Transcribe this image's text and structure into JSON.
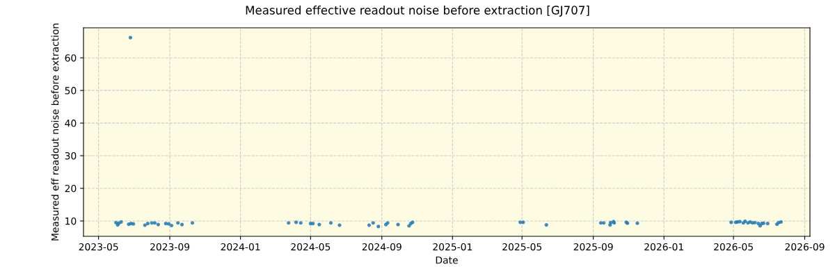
{
  "chart_data": {
    "type": "scatter",
    "title": "Measured effective readout noise before extraction [GJ707]",
    "xlabel": "Date",
    "ylabel": "Measured eff readout noise before extraction",
    "x": [
      "2023-05-31",
      "2023-06-03",
      "2023-06-05",
      "2023-06-09",
      "2023-06-22",
      "2023-06-25",
      "2023-06-26",
      "2023-06-30",
      "2023-07-20",
      "2023-07-25",
      "2023-08-01",
      "2023-08-06",
      "2023-08-12",
      "2023-08-25",
      "2023-08-30",
      "2023-09-04",
      "2023-09-15",
      "2023-09-22",
      "2023-10-10",
      "2024-03-24",
      "2024-04-06",
      "2024-04-14",
      "2024-05-01",
      "2024-05-05",
      "2024-05-16",
      "2024-06-05",
      "2024-06-20",
      "2024-08-10",
      "2024-08-17",
      "2024-08-26",
      "2024-09-08",
      "2024-09-11",
      "2024-09-29",
      "2024-10-18",
      "2024-10-21",
      "2024-10-24",
      "2025-04-28",
      "2025-05-03",
      "2025-06-12",
      "2025-09-14",
      "2025-09-19",
      "2025-09-30",
      "2025-10-01",
      "2025-10-06",
      "2025-10-07",
      "2025-10-28",
      "2025-10-30",
      "2025-11-16",
      "2026-04-27",
      "2026-05-05",
      "2026-05-08",
      "2026-05-12",
      "2026-05-18",
      "2026-05-21",
      "2026-05-26",
      "2026-05-30",
      "2026-06-03",
      "2026-06-07",
      "2026-06-13",
      "2026-06-16",
      "2026-06-19",
      "2026-06-22",
      "2026-06-29",
      "2026-07-15",
      "2026-07-18",
      "2026-07-22"
    ],
    "series": [
      {
        "color": "#1f77b4",
        "values": [
          9.5,
          8.8,
          9.3,
          9.7,
          9.0,
          66.2,
          9.2,
          9.1,
          8.7,
          9.2,
          9.4,
          9.4,
          8.9,
          9.2,
          9.1,
          8.6,
          9.4,
          8.9,
          9.4,
          9.4,
          9.6,
          9.4,
          9.2,
          9.2,
          8.9,
          9.4,
          8.7,
          8.7,
          9.4,
          8.3,
          8.9,
          9.4,
          8.9,
          8.5,
          9.2,
          9.6,
          9.6,
          9.6,
          8.8,
          9.4,
          9.4,
          8.8,
          9.5,
          9.8,
          9.4,
          9.6,
          9.3,
          9.3,
          9.6,
          9.6,
          9.7,
          9.8,
          9.4,
          9.9,
          9.4,
          9.7,
          9.4,
          9.5,
          9.2,
          8.5,
          9.2,
          9.3,
          9.2,
          9.0,
          9.5,
          9.7
        ]
      }
    ],
    "xlim": [
      "2023-04-05",
      "2026-09-10"
    ],
    "xticks": [
      {
        "value": "2023-05-01",
        "label": "2023-05"
      },
      {
        "value": "2023-09-01",
        "label": "2023-09"
      },
      {
        "value": "2024-01-01",
        "label": "2024-01"
      },
      {
        "value": "2024-05-01",
        "label": "2024-05"
      },
      {
        "value": "2024-09-01",
        "label": "2024-09"
      },
      {
        "value": "2025-01-01",
        "label": "2025-01"
      },
      {
        "value": "2025-05-01",
        "label": "2025-05"
      },
      {
        "value": "2025-09-01",
        "label": "2025-09"
      },
      {
        "value": "2026-01-01",
        "label": "2026-01"
      },
      {
        "value": "2026-05-01",
        "label": "2026-05"
      },
      {
        "value": "2026-09-01",
        "label": "2026-09"
      }
    ],
    "ylim": [
      5.3,
      69.2
    ],
    "yticks": [
      10,
      20,
      30,
      40,
      50,
      60
    ],
    "grid": true,
    "marker": "circle"
  }
}
